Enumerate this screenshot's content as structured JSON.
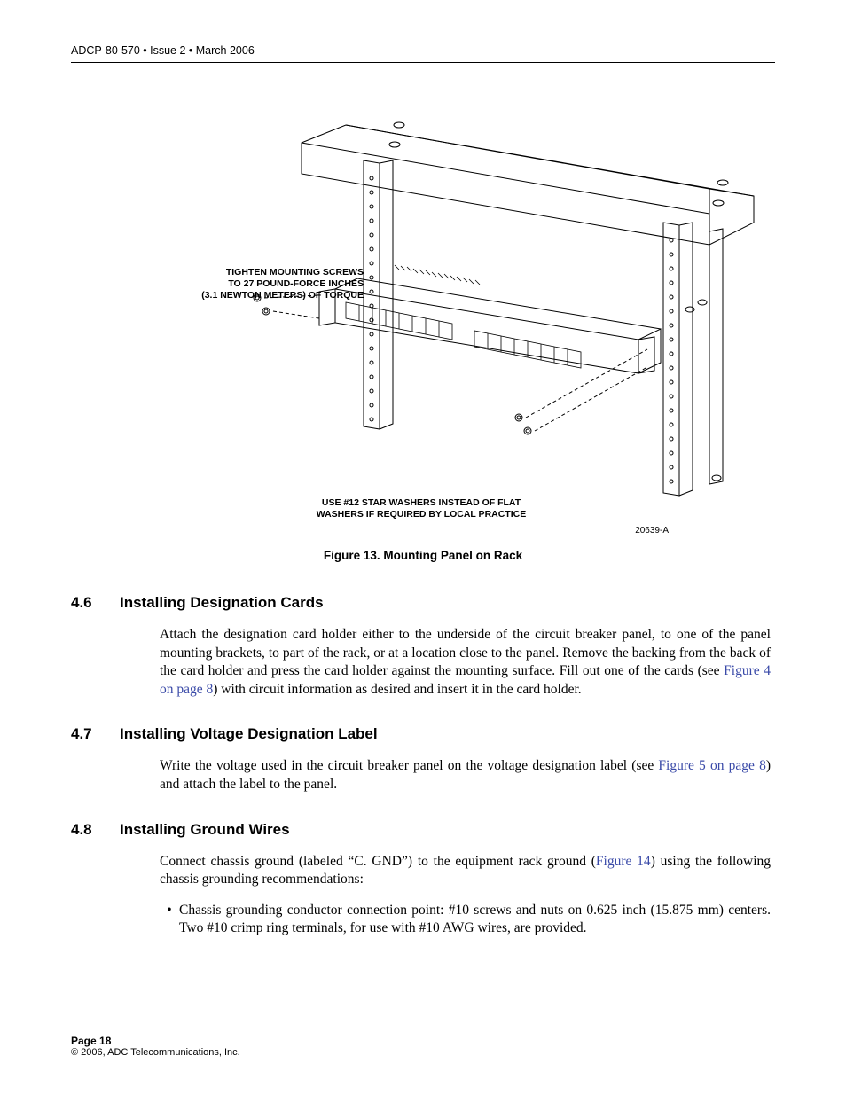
{
  "header": {
    "running": "ADCP-80-570 • Issue 2 • March 2006"
  },
  "figure": {
    "callout_top": "TIGHTEN MOUNTING SCREWS\nTO 27 POUND-FORCE INCHES\n(3.1 NEWTON METERS) OF TORQUE",
    "callout_bottom": "USE #12 STAR WASHERS INSTEAD OF FLAT\nWASHERS IF REQUIRED BY LOCAL PRACTICE",
    "drawing_id": "20639-A",
    "caption": "Figure 13. Mounting Panel on Rack",
    "svg": {
      "stroke": "#000000",
      "fill": "none",
      "stroke_width": 1
    }
  },
  "sections": [
    {
      "num": "4.6",
      "title": "Installing Designation Cards",
      "paras": [
        {
          "type": "para",
          "runs": [
            {
              "t": "Attach the designation card holder either to the underside of the circuit breaker panel, to one of the panel mounting brackets, to part of the rack, or at a location close to the panel. Remove the backing from the back of the card holder and press the card holder against the mounting surface. Fill out one of the cards (see "
            },
            {
              "t": "Figure 4 on page 8",
              "xref": true
            },
            {
              "t": ") with circuit information as desired and insert it in the card holder."
            }
          ]
        }
      ]
    },
    {
      "num": "4.7",
      "title": "Installing Voltage Designation Label",
      "paras": [
        {
          "type": "para",
          "runs": [
            {
              "t": "Write the voltage used in the circuit breaker panel on the voltage designation label (see "
            },
            {
              "t": "Figure 5 on page 8",
              "xref": true
            },
            {
              "t": ") and attach the label to the panel."
            }
          ]
        }
      ]
    },
    {
      "num": "4.8",
      "title": "Installing Ground Wires",
      "paras": [
        {
          "type": "para",
          "runs": [
            {
              "t": "Connect chassis ground (labeled “C. GND”) to the equipment rack ground ("
            },
            {
              "t": "Figure 14",
              "xref": true
            },
            {
              "t": ") using the following chassis grounding recommendations:"
            }
          ]
        },
        {
          "type": "bullet",
          "runs": [
            {
              "t": "Chassis grounding conductor connection point: #10 screws and nuts on 0.625 inch (15.875 mm) centers. Two #10 crimp ring terminals, for use with #10 AWG wires, are provided."
            }
          ]
        }
      ]
    }
  ],
  "footer": {
    "page": "Page 18",
    "copyright": "© 2006, ADC Telecommunications, Inc."
  }
}
